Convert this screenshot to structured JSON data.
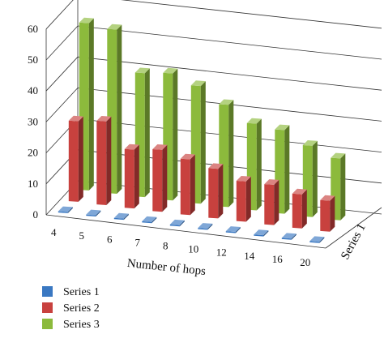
{
  "chart_data": {
    "type": "bar",
    "subtype": "3d-clustered-bar",
    "title": "",
    "xlabel": "Number of hops",
    "ylabel": "",
    "depth_axis_label": "Series 1",
    "ylim": [
      0,
      60
    ],
    "yticks": [
      "0",
      "10",
      "20",
      "30",
      "40",
      "50",
      "60"
    ],
    "categories": [
      "4",
      "5",
      "6",
      "7",
      "8",
      "10",
      "12",
      "14",
      "16",
      "20"
    ],
    "series": [
      {
        "name": "Series 1",
        "color": "#3a78c2",
        "values": [
          0.3,
          0.3,
          0.3,
          0.3,
          0.3,
          0.3,
          0.3,
          0.3,
          0.3,
          0.3
        ]
      },
      {
        "name": "Series 2",
        "color": "#c8413e",
        "values": [
          26,
          27,
          19,
          20,
          18,
          16,
          13,
          13,
          11,
          10
        ]
      },
      {
        "name": "Series 3",
        "color": "#8cba3c",
        "values": [
          54,
          53,
          40,
          41,
          38,
          33,
          28,
          27,
          23,
          20
        ]
      }
    ],
    "grid": true,
    "legend_position": "bottom-left"
  }
}
